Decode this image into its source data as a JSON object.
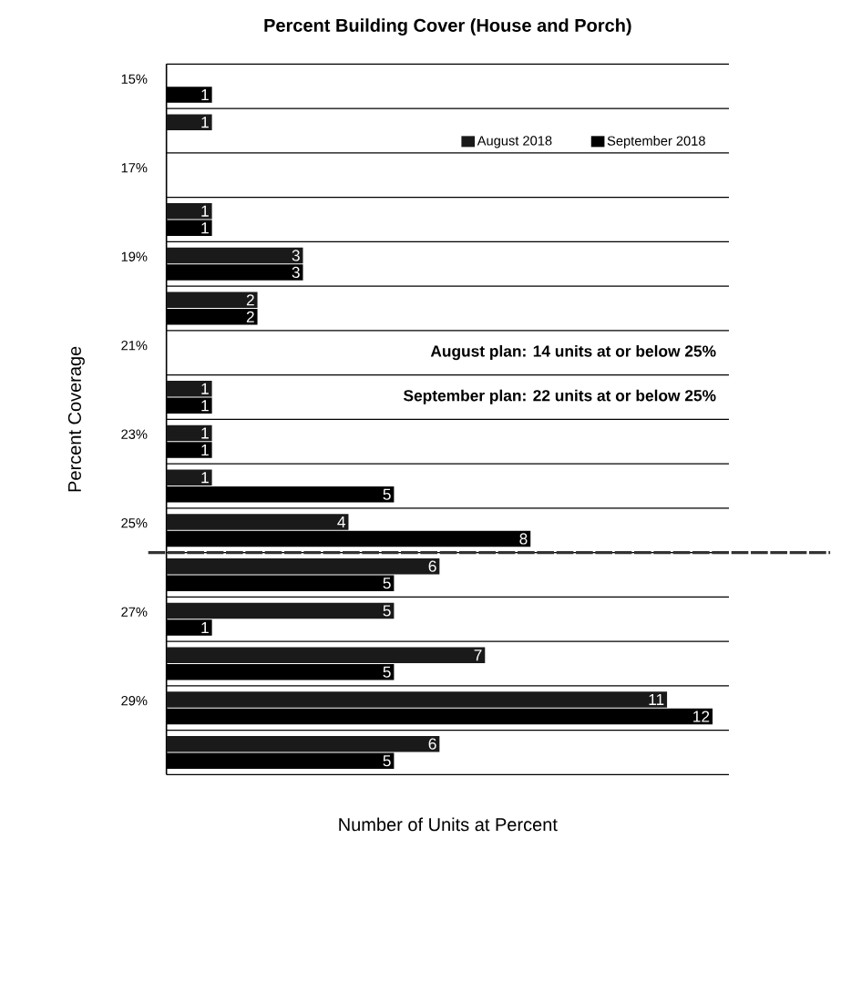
{
  "chart_data": {
    "type": "bar",
    "orientation": "horizontal",
    "title": "Percent Building Cover (House and Porch)",
    "xlabel": "Number of Units at Percent",
    "ylabel": "Percent Coverage",
    "categories": [
      "15%",
      null,
      "17%",
      null,
      "19%",
      null,
      "21%",
      null,
      "23%",
      null,
      "25%",
      null,
      "27%",
      null,
      "29%",
      null
    ],
    "series": [
      {
        "name": "August 2018",
        "color": "#1a1a1a",
        "values": [
          null,
          1,
          null,
          1,
          3,
          2,
          null,
          1,
          1,
          1,
          4,
          6,
          5,
          7,
          11,
          6
        ]
      },
      {
        "name": "September 2018",
        "color": "#000000",
        "values": [
          1,
          null,
          null,
          1,
          3,
          2,
          null,
          1,
          1,
          5,
          8,
          5,
          1,
          5,
          12,
          5
        ]
      }
    ],
    "data_labels": true,
    "legend": "top right",
    "grid": "y",
    "ref_lines": [
      {
        "axis": "y",
        "value": "25%",
        "color": "#333333",
        "line_style": "dashed"
      }
    ],
    "annotations": [
      "August plan: 14 units at or below 25%",
      "September plan: 22 units at or below 25%"
    ]
  }
}
